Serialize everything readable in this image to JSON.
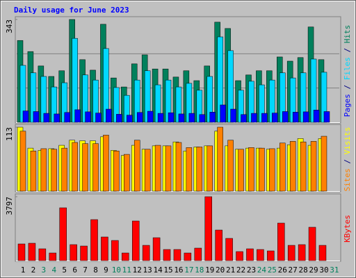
{
  "title": "Daily usage for June 2023",
  "x_axis": {
    "categories": [
      "1",
      "2",
      "3",
      "4",
      "5",
      "6",
      "7",
      "8",
      "9",
      "10",
      "11",
      "12",
      "13",
      "14",
      "15",
      "16",
      "17",
      "18",
      "19",
      "20",
      "21",
      "22",
      "23",
      "24",
      "25",
      "26",
      "27",
      "28",
      "29",
      "30",
      "31"
    ],
    "colors": [
      "#000000",
      "#000000",
      "#00805c",
      "#00805c",
      "#000000",
      "#000000",
      "#000000",
      "#000000",
      "#000000",
      "#00805c",
      "#00805c",
      "#000000",
      "#000000",
      "#000000",
      "#000000",
      "#000000",
      "#00805c",
      "#00805c",
      "#000000",
      "#000000",
      "#000000",
      "#000000",
      "#000000",
      "#00805c",
      "#00805c",
      "#000000",
      "#000000",
      "#000000",
      "#000000",
      "#000000",
      "#00805c"
    ]
  },
  "chart_data": [
    {
      "type": "bar",
      "ylim": [
        0,
        343
      ],
      "yticks": [
        343
      ],
      "legend_separator": "/",
      "series": [
        {
          "name": "Hits",
          "color": "#00805c",
          "values": [
            273,
            236,
            188,
            153,
            172,
            343,
            209,
            174,
            327,
            148,
            118,
            195,
            225,
            178,
            178,
            151,
            172,
            139,
            188,
            334,
            313,
            139,
            158,
            172,
            172,
            218,
            204,
            216,
            318,
            209,
            null
          ]
        },
        {
          "name": "Files",
          "color": "#00d8ff",
          "values": [
            190,
            165,
            153,
            118,
            132,
            280,
            158,
            141,
            246,
            116,
            90,
            141,
            172,
            125,
            141,
            118,
            130,
            107,
            153,
            285,
            239,
            107,
            137,
            125,
            141,
            165,
            148,
            165,
            211,
            167,
            null
          ]
        },
        {
          "name": "Pages",
          "color": "#0000ff",
          "values": [
            38,
            36,
            30,
            28,
            33,
            42,
            35,
            31,
            44,
            27,
            24,
            33,
            37,
            30,
            32,
            28,
            30,
            26,
            34,
            58,
            44,
            26,
            30,
            30,
            31,
            36,
            34,
            35,
            41,
            36,
            null
          ]
        }
      ]
    },
    {
      "type": "bar",
      "ylim": [
        0,
        113
      ],
      "yticks": [
        113
      ],
      "legend_separator": "/",
      "series": [
        {
          "name": "Visits",
          "color": "#ffff00",
          "values": [
            113,
            76,
            72,
            75,
            81,
            90,
            89,
            89,
            96,
            72,
            63,
            81,
            74,
            80,
            80,
            87,
            71,
            78,
            80,
            106,
            80,
            74,
            76,
            76,
            74,
            76,
            82,
            93,
            81,
            93,
            null
          ]
        },
        {
          "name": "Sites",
          "color": "#ff8000",
          "values": [
            106,
            71,
            75,
            74,
            76,
            86,
            84,
            84,
            99,
            71,
            65,
            90,
            74,
            81,
            80,
            86,
            77,
            78,
            80,
            113,
            90,
            74,
            77,
            76,
            75,
            85,
            88,
            87,
            88,
            97,
            null
          ]
        }
      ]
    },
    {
      "type": "bar",
      "ylim": [
        0,
        3797
      ],
      "yticks": [
        3797
      ],
      "series": [
        {
          "name": "KBytes",
          "color": "#ff0000",
          "values": [
            991,
            1032,
            702,
            454,
            3137,
            950,
            867,
            2436,
            1404,
            1197,
            454,
            2353,
            908,
            1362,
            661,
            661,
            454,
            743,
            3797,
            1816,
            1321,
            537,
            702,
            661,
            578,
            2229,
            908,
            950,
            1982,
            908,
            null
          ]
        }
      ]
    }
  ]
}
